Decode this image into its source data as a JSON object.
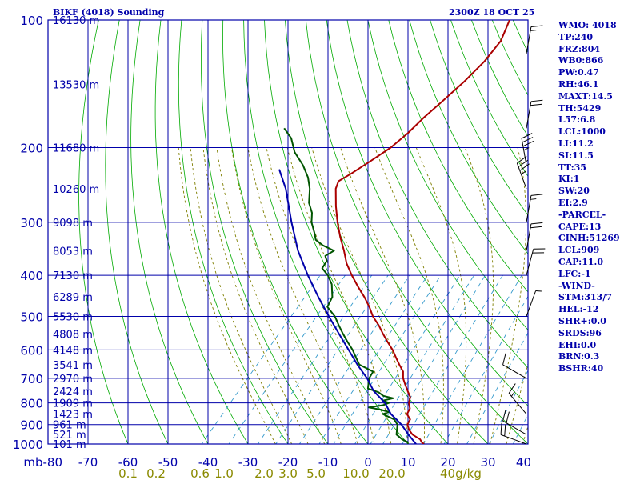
{
  "header": {
    "title": "BIKF (4018) Sounding",
    "time": "2300Z 18 OCT 25"
  },
  "stats": [
    "WMO: 4018",
    "TP:240",
    "FRZ:804",
    "WB0:866",
    "PW:0.47",
    "RH:46.1",
    "MAXT:14.5",
    "TH:5429",
    "L57:6.8",
    "LCL:1000",
    "LI:11.2",
    "SI:11.5",
    "TT:35",
    "KI:1",
    "SW:20",
    "EI:2.9",
    "-PARCEL-",
    "CAPE:13",
    "CINH:51269",
    "LCL:909",
    "CAP:11.0",
    "LFC:-1",
    "-WIND-",
    "STM:313/7",
    "HEL:-12",
    "SHR+:0.0",
    "SRDS:96",
    "EHI:0.0",
    "BRN:0.3",
    "BSHR:40"
  ],
  "chart_data": {
    "type": "line",
    "title": "BIKF (4018) Sounding",
    "xlabel": "",
    "ylabel": "mb",
    "xlim": [
      -80,
      40
    ],
    "ylim": [
      1000,
      100
    ],
    "y_scale": "log",
    "colors": {
      "grid": "#0000aa",
      "dry_adiabat": "#00aa00",
      "moist_adiabat": "#7f7f00",
      "mixing_ratio": "#3399cc",
      "temperature": "#aa0000",
      "dewpoint": "#005500",
      "parcel": "#0000aa"
    },
    "pressure_ticks": [
      100,
      200,
      300,
      400,
      500,
      600,
      700,
      800,
      900,
      1000
    ],
    "pressure_tick_labels": [
      "100",
      "200",
      "300",
      "400",
      "500",
      "600",
      "700",
      "800",
      "900",
      "1000"
    ],
    "temperature_ticks": [
      -80,
      -70,
      -60,
      -50,
      -40,
      -30,
      -20,
      -10,
      0,
      10,
      20,
      30,
      40
    ],
    "temperature_tick_labels": [
      "mb-80",
      "-70",
      "-60",
      "-50",
      "-40",
      "-30",
      "-20",
      "-10",
      "0",
      "10",
      "20",
      "30",
      "40"
    ],
    "mixing_ratio_labels": [
      {
        "value": "0.1",
        "t": -60
      },
      {
        "value": "0.2",
        "t": -53
      },
      {
        "value": "0.6",
        "t": -42
      },
      {
        "value": "1.0",
        "t": -36
      },
      {
        "value": "2.0",
        "t": -26
      },
      {
        "value": "3.0",
        "t": -20
      },
      {
        "value": "5.0",
        "t": -13
      },
      {
        "value": "10.0",
        "t": -3
      },
      {
        "value": "20.0",
        "t": 6
      },
      {
        "value": "40g/kg",
        "t": 18
      }
    ],
    "height_labels": [
      {
        "p": 100,
        "label": "16130 m"
      },
      {
        "p": 142,
        "label": "13530 m"
      },
      {
        "p": 200,
        "label": "11680 m"
      },
      {
        "p": 250,
        "label": "10260 m"
      },
      {
        "p": 300,
        "label": "9098 m"
      },
      {
        "p": 350,
        "label": "8053 m"
      },
      {
        "p": 400,
        "label": "7130 m"
      },
      {
        "p": 450,
        "label": "6289 m"
      },
      {
        "p": 500,
        "label": "5530 m"
      },
      {
        "p": 550,
        "label": "4808 m"
      },
      {
        "p": 600,
        "label": "4148 m"
      },
      {
        "p": 650,
        "label": "3541 m"
      },
      {
        "p": 700,
        "label": "2970 m"
      },
      {
        "p": 750,
        "label": "2424 m"
      },
      {
        "p": 800,
        "label": "1909 m"
      },
      {
        "p": 850,
        "label": "1423 m"
      },
      {
        "p": 900,
        "label": "961 m"
      },
      {
        "p": 950,
        "label": "521 m"
      },
      {
        "p": 1000,
        "label": "101 m"
      }
    ],
    "series": [
      {
        "key": "temperature",
        "points": [
          [
            1000,
            14.0
          ],
          [
            990,
            13.0
          ],
          [
            975,
            12.0
          ],
          [
            950,
            9.0
          ],
          [
            925,
            7.0
          ],
          [
            900,
            5.5
          ],
          [
            875,
            5.0
          ],
          [
            850,
            3.0
          ],
          [
            825,
            2.5
          ],
          [
            800,
            1.0
          ],
          [
            775,
            0.0
          ],
          [
            750,
            -2.0
          ],
          [
            725,
            -4.0
          ],
          [
            700,
            -6.0
          ],
          [
            675,
            -7.5
          ],
          [
            650,
            -10.0
          ],
          [
            625,
            -12.5
          ],
          [
            600,
            -15.0
          ],
          [
            575,
            -18.0
          ],
          [
            550,
            -21.0
          ],
          [
            525,
            -24.0
          ],
          [
            500,
            -27.5
          ],
          [
            475,
            -30.5
          ],
          [
            450,
            -34.0
          ],
          [
            425,
            -38.0
          ],
          [
            400,
            -42.0
          ],
          [
            375,
            -46.0
          ],
          [
            350,
            -49.5
          ],
          [
            325,
            -53.5
          ],
          [
            300,
            -57.5
          ],
          [
            275,
            -61.5
          ],
          [
            250,
            -65.5
          ],
          [
            240,
            -66.5
          ],
          [
            230,
            -65.0
          ],
          [
            215,
            -63.0
          ],
          [
            200,
            -61.0
          ],
          [
            185,
            -60.0
          ],
          [
            170,
            -59.5
          ],
          [
            155,
            -58.5
          ],
          [
            140,
            -57.5
          ],
          [
            125,
            -57.0
          ],
          [
            112,
            -57.5
          ],
          [
            100,
            -60.0
          ]
        ]
      },
      {
        "key": "dewpoint",
        "points": [
          [
            1000,
            10.0
          ],
          [
            990,
            9.5
          ],
          [
            975,
            7.5
          ],
          [
            950,
            5.0
          ],
          [
            925,
            4.0
          ],
          [
            900,
            3.0
          ],
          [
            875,
            1.0
          ],
          [
            850,
            -3.0
          ],
          [
            840,
            -2.0
          ],
          [
            830,
            -4.5
          ],
          [
            820,
            -8.0
          ],
          [
            810,
            -5.0
          ],
          [
            800,
            -4.0
          ],
          [
            790,
            -6.0
          ],
          [
            780,
            -4.0
          ],
          [
            770,
            -7.0
          ],
          [
            755,
            -9.0
          ],
          [
            740,
            -12.5
          ],
          [
            720,
            -13.5
          ],
          [
            700,
            -14.5
          ],
          [
            675,
            -15.0
          ],
          [
            650,
            -20.0
          ],
          [
            625,
            -22.5
          ],
          [
            600,
            -25.0
          ],
          [
            575,
            -28.0
          ],
          [
            550,
            -31.0
          ],
          [
            525,
            -34.0
          ],
          [
            500,
            -37.0
          ],
          [
            475,
            -41.0
          ],
          [
            450,
            -42.0
          ],
          [
            420,
            -45.0
          ],
          [
            400,
            -48.0
          ],
          [
            385,
            -51.0
          ],
          [
            370,
            -51.5
          ],
          [
            360,
            -53.0
          ],
          [
            350,
            -52.0
          ],
          [
            340,
            -56.0
          ],
          [
            330,
            -59.0
          ],
          [
            320,
            -60.5
          ],
          [
            300,
            -64.0
          ],
          [
            285,
            -66.0
          ],
          [
            270,
            -69.0
          ],
          [
            250,
            -72.0
          ],
          [
            235,
            -75.0
          ],
          [
            220,
            -79.0
          ],
          [
            205,
            -84.0
          ],
          [
            190,
            -88.0
          ],
          [
            180,
            -92.0
          ]
        ]
      },
      {
        "key": "parcel",
        "points": [
          [
            1000,
            12.0
          ],
          [
            950,
            8.0
          ],
          [
            900,
            4.0
          ],
          [
            850,
            -1.0
          ],
          [
            800,
            -5.0
          ],
          [
            750,
            -10.5
          ],
          [
            700,
            -15.0
          ],
          [
            650,
            -20.5
          ],
          [
            600,
            -26.0
          ],
          [
            550,
            -32.0
          ],
          [
            500,
            -38.5
          ],
          [
            450,
            -45.5
          ],
          [
            400,
            -53.0
          ],
          [
            350,
            -61.0
          ],
          [
            300,
            -69.0
          ],
          [
            250,
            -78.0
          ],
          [
            225,
            -84.0
          ]
        ]
      }
    ],
    "wind_barbs": [
      {
        "p": 120,
        "dir": 10,
        "kt": 15
      },
      {
        "p": 180,
        "dir": 10,
        "kt": 20
      },
      {
        "p": 220,
        "dir": 350,
        "kt": 35
      },
      {
        "p": 250,
        "dir": 340,
        "kt": 35
      },
      {
        "p": 300,
        "dir": 10,
        "kt": 15
      },
      {
        "p": 350,
        "dir": 10,
        "kt": 20
      },
      {
        "p": 400,
        "dir": 15,
        "kt": 20
      },
      {
        "p": 500,
        "dir": 20,
        "kt": 5
      },
      {
        "p": 700,
        "dir": 300,
        "kt": 10
      },
      {
        "p": 850,
        "dir": 320,
        "kt": 15
      },
      {
        "p": 950,
        "dir": 300,
        "kt": 20
      },
      {
        "p": 1000,
        "dir": 290,
        "kt": 20
      }
    ]
  }
}
